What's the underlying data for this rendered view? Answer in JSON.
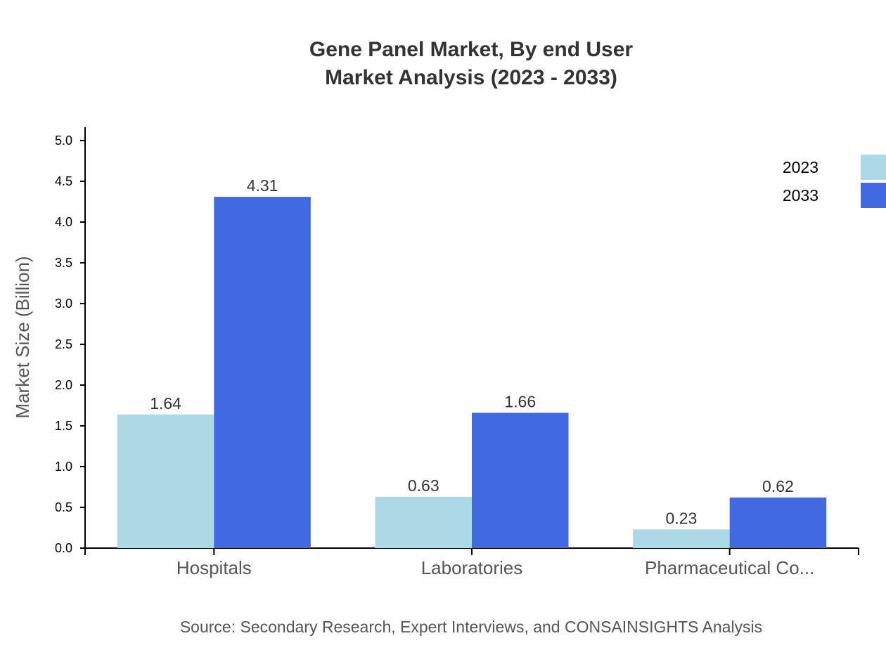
{
  "chart_data": {
    "type": "bar",
    "title": "Gene Panel Market, By end User",
    "subtitle": "Market Analysis (2023 - 2033)",
    "xlabel": "",
    "ylabel": "Market Size (Billion)",
    "ylim": [
      0,
      5.0
    ],
    "yticks": [
      "0.0",
      "0.5",
      "1.0",
      "1.5",
      "2.0",
      "2.5",
      "3.0",
      "3.5",
      "4.0",
      "4.5",
      "5.0"
    ],
    "categories": [
      "Hospitals",
      "Laboratories",
      "Pharmaceutical Co..."
    ],
    "series": [
      {
        "name": "2023",
        "color": "#ADD8E6",
        "values": [
          1.64,
          0.63,
          0.23
        ]
      },
      {
        "name": "2033",
        "color": "#4169E1",
        "values": [
          4.31,
          1.66,
          0.62
        ]
      }
    ],
    "grid": false,
    "legend": "top-right",
    "source": "Source: Secondary Research, Expert Interviews, and CONSAINSIGHTS Analysis"
  }
}
